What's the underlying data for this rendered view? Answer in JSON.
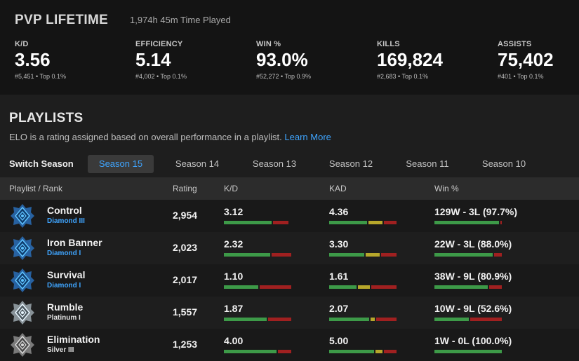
{
  "header": {
    "title": "PVP LIFETIME",
    "time_played": "1,974h 45m Time Played",
    "stats": [
      {
        "label": "K/D",
        "value": "3.56",
        "sub": "#5,451 • Top 0.1%"
      },
      {
        "label": "EFFICIENCY",
        "value": "5.14",
        "sub": "#4,002 • Top 0.1%"
      },
      {
        "label": "WIN %",
        "value": "93.0%",
        "sub": "#52,272 • Top 0.9%"
      },
      {
        "label": "KILLS",
        "value": "169,824",
        "sub": "#2,683 • Top 0.1%"
      },
      {
        "label": "ASSISTS",
        "value": "75,402",
        "sub": "#401 • Top 0.1%"
      }
    ]
  },
  "playlists": {
    "title": "PLAYLISTS",
    "description": "ELO is a rating assigned based on overall performance in a playlist.",
    "learn_more": "Learn More",
    "switch_label": "Switch Season",
    "seasons": [
      "Season 15",
      "Season 14",
      "Season 13",
      "Season 12",
      "Season 11",
      "Season 10"
    ],
    "active_season": "Season 15",
    "columns": [
      "Playlist / Rank",
      "Rating",
      "K/D",
      "KAD",
      "Win %"
    ],
    "rows": [
      {
        "name": "Control",
        "rank": "Diamond III",
        "rank_color": "#3fa5ff",
        "rating": "2,954",
        "kd": "3.12",
        "kad": "4.36",
        "win": "129W - 3L (97.7%)",
        "kd_bar": [
          0.71,
          0,
          0.23
        ],
        "kad_bar": [
          0.56,
          0.21,
          0.19
        ],
        "win_bar": [
          0.977,
          0,
          0.023
        ]
      },
      {
        "name": "Iron Banner",
        "rank": "Diamond I",
        "rank_color": "#3fa5ff",
        "rating": "2,023",
        "kd": "2.32",
        "kad": "3.30",
        "win": "22W - 3L (88.0%)",
        "kd_bar": [
          0.7,
          0,
          0.3
        ],
        "kad_bar": [
          0.52,
          0.21,
          0.23
        ],
        "win_bar": [
          0.88,
          0,
          0.12
        ]
      },
      {
        "name": "Survival",
        "rank": "Diamond I",
        "rank_color": "#3fa5ff",
        "rating": "2,017",
        "kd": "1.10",
        "kad": "1.61",
        "win": "38W - 9L (80.9%)",
        "kd_bar": [
          0.52,
          0,
          0.48
        ],
        "kad_bar": [
          0.41,
          0.17,
          0.38
        ],
        "win_bar": [
          0.809,
          0,
          0.191
        ]
      },
      {
        "name": "Rumble",
        "rank": "Platinum I",
        "rank_color": "#e0e0e0",
        "rating": "1,557",
        "kd": "1.87",
        "kad": "2.07",
        "win": "10W - 9L (52.6%)",
        "kd_bar": [
          0.65,
          0,
          0.35
        ],
        "kad_bar": [
          0.6,
          0.06,
          0.31
        ],
        "win_bar": [
          0.526,
          0,
          0.474
        ]
      },
      {
        "name": "Elimination",
        "rank": "Silver III",
        "rank_color": "#e0e0e0",
        "rating": "1,253",
        "kd": "4.00",
        "kad": "5.00",
        "win": "1W - 0L (100.0%)",
        "kd_bar": [
          0.8,
          0,
          0.2
        ],
        "kad_bar": [
          0.7,
          0.1,
          0.2
        ],
        "win_bar": [
          1.0,
          0,
          0
        ]
      }
    ]
  },
  "colors": {
    "accent": "#3fa5ff",
    "bar_green": "#3d9a48",
    "bar_yellow": "#b7a72b",
    "bar_red": "#a02020"
  },
  "icons": {
    "diamond_emblem": "diamond-rank-emblem-icon",
    "platinum_emblem": "platinum-rank-emblem-icon",
    "silver_emblem": "silver-rank-emblem-icon"
  }
}
